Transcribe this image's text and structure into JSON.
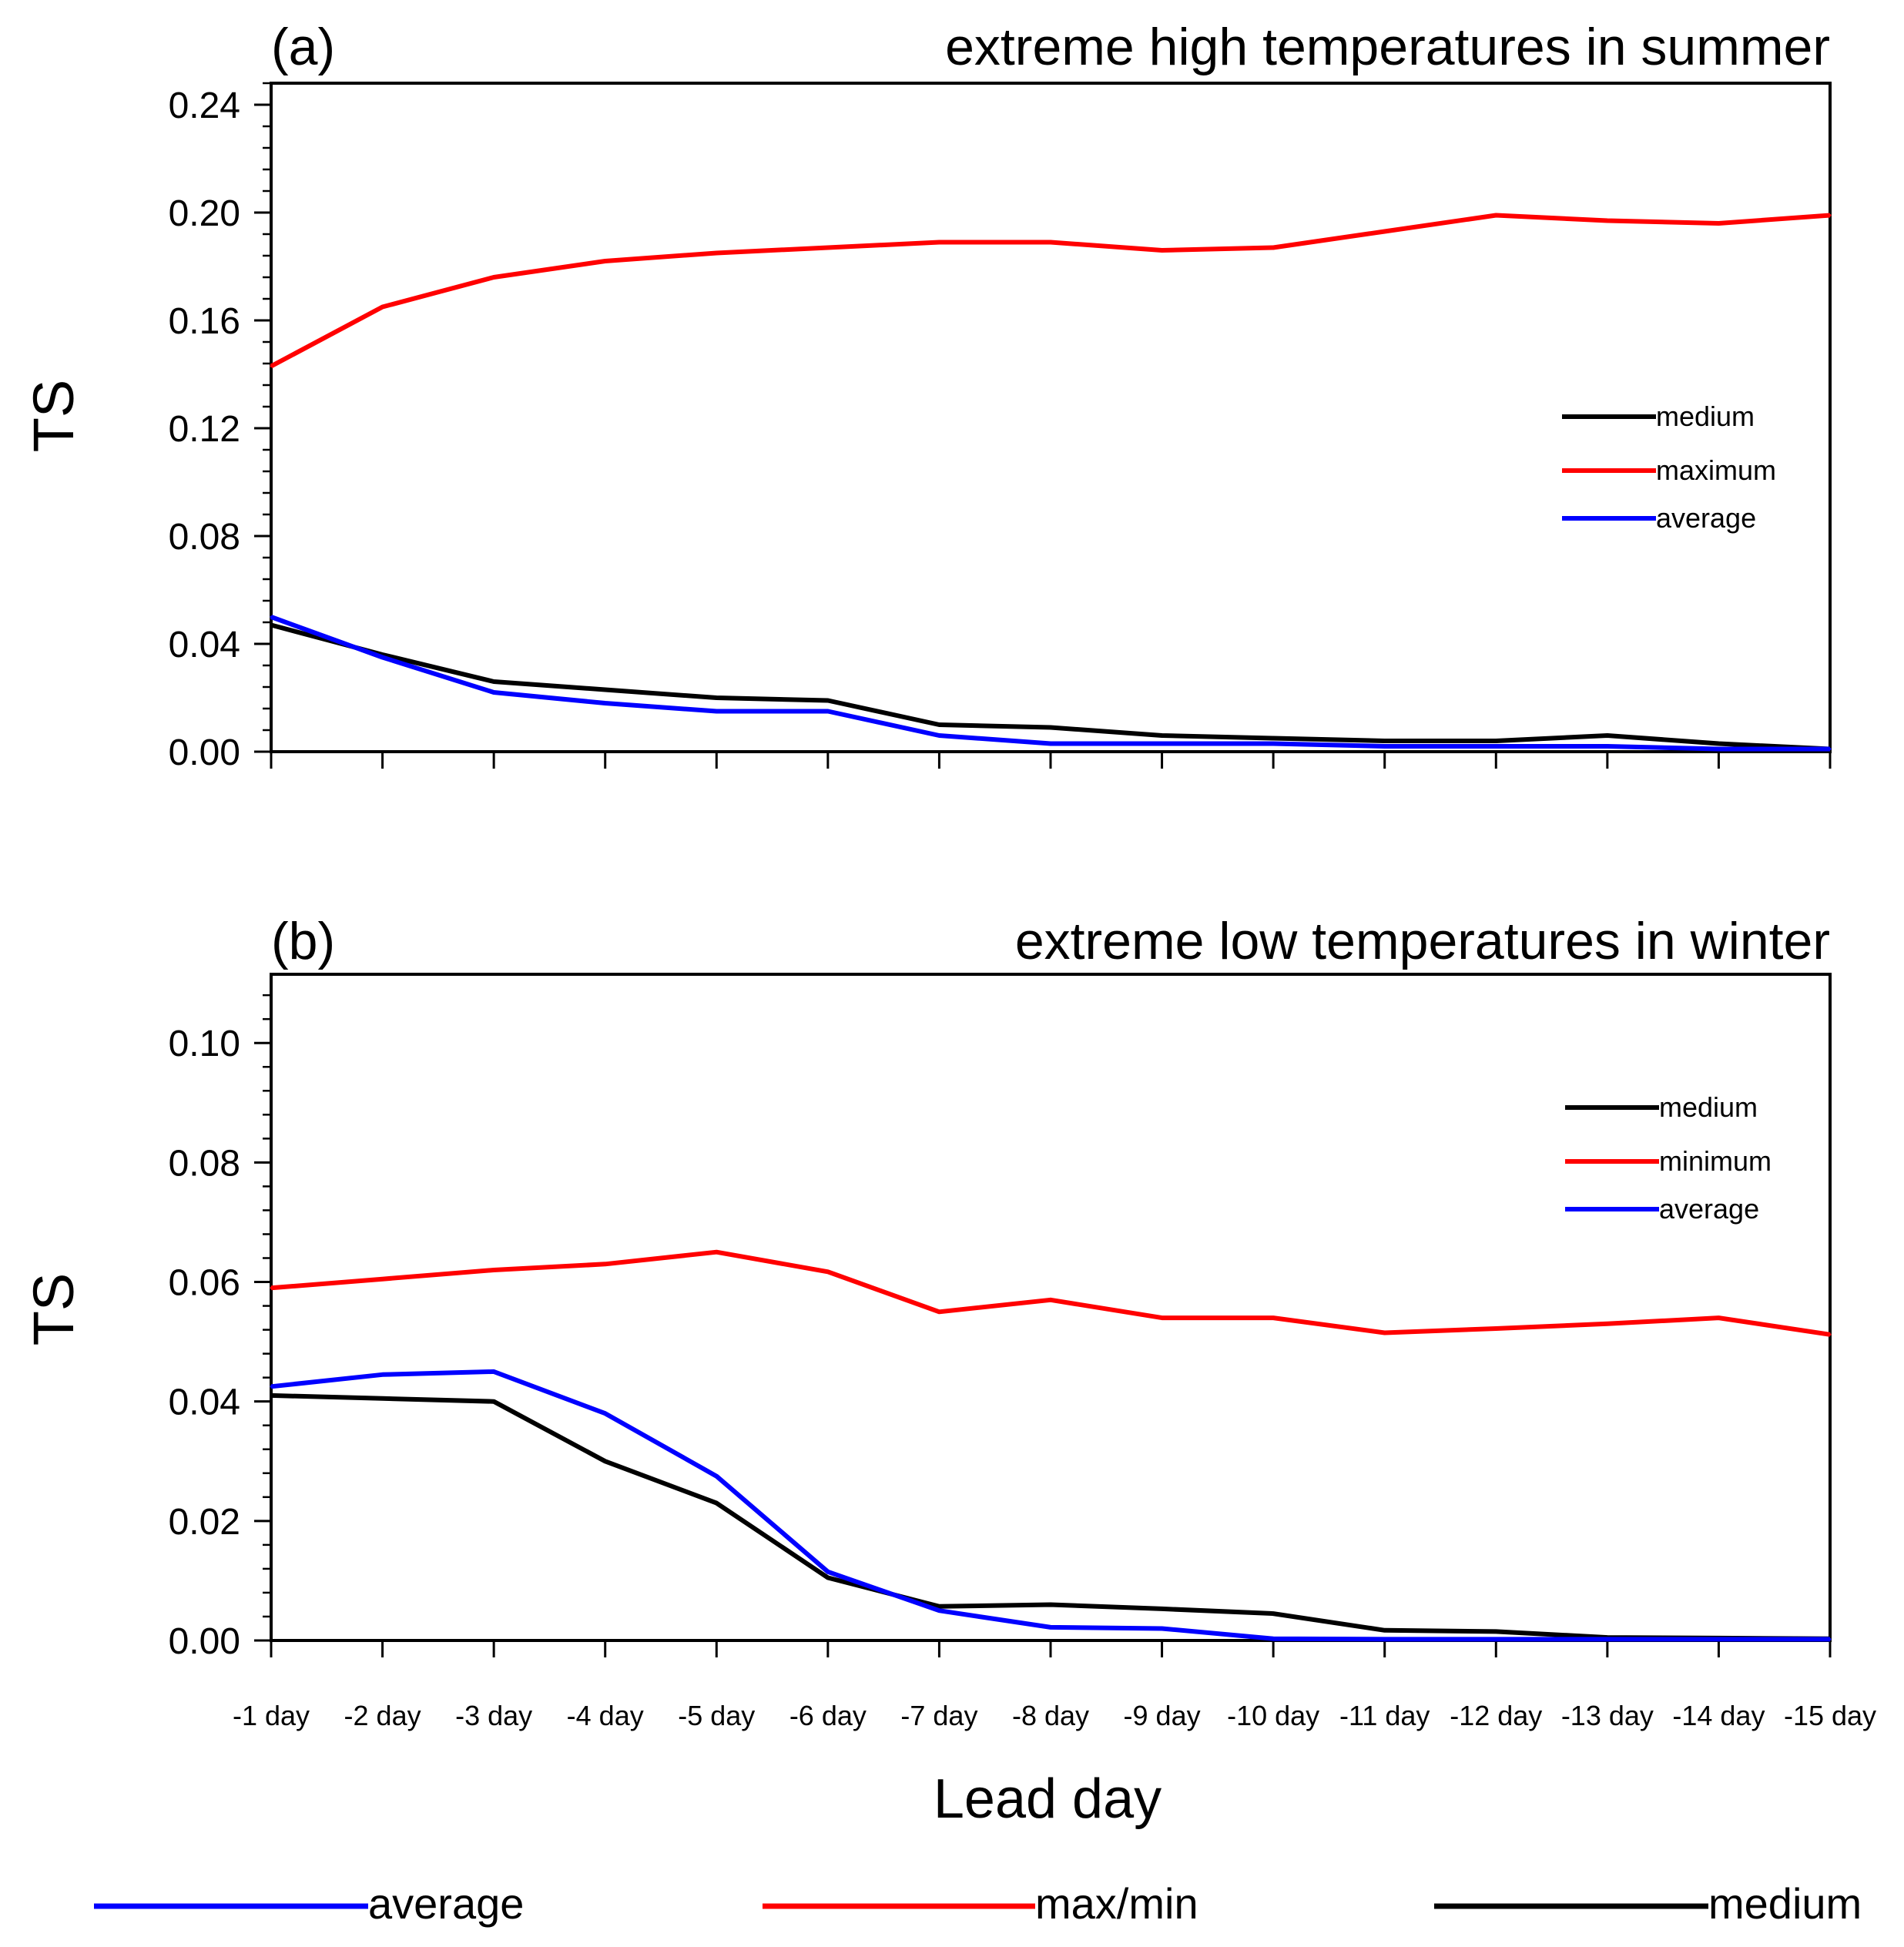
{
  "colors": {
    "medium": "#000000",
    "maxmin": "#ff0000",
    "average": "#0000ff"
  },
  "x_label": "Lead day",
  "bottom_legend": [
    {
      "label": "average",
      "color": "#0000ff"
    },
    {
      "label": "max/min",
      "color": "#ff0000"
    },
    {
      "label": "medium",
      "color": "#000000"
    }
  ],
  "chart_data": [
    {
      "type": "line",
      "panel_label": "(a)",
      "title": "extreme high temperatures in summer",
      "xlabel": "Lead day",
      "ylabel": "TS",
      "categories": [
        "-1 day",
        "-2 day",
        "-3 day",
        "-4 day",
        "-5 day",
        "-6 day",
        "-7 day",
        "-8 day",
        "-9 day",
        "-10 day",
        "-11 day",
        "-12 day",
        "-13 day",
        "-14 day",
        "-15 day"
      ],
      "ylim": [
        0,
        0.248
      ],
      "yticks": [
        "0.00",
        "0.04",
        "0.08",
        "0.12",
        "0.16",
        "0.20",
        "0.24"
      ],
      "legend_position": "right",
      "series": [
        {
          "name": "medium",
          "key": "medium",
          "values": [
            0.047,
            0.036,
            0.026,
            0.023,
            0.02,
            0.019,
            0.01,
            0.009,
            0.006,
            0.005,
            0.004,
            0.004,
            0.006,
            0.003,
            0.001
          ]
        },
        {
          "name": "maximum",
          "key": "maxmin",
          "values": [
            0.143,
            0.165,
            0.176,
            0.182,
            0.185,
            0.187,
            0.189,
            0.189,
            0.186,
            0.187,
            0.193,
            0.199,
            0.197,
            0.196,
            0.199
          ]
        },
        {
          "name": "average",
          "key": "average",
          "values": [
            0.05,
            0.035,
            0.022,
            0.018,
            0.015,
            0.015,
            0.006,
            0.003,
            0.003,
            0.003,
            0.002,
            0.002,
            0.002,
            0.001,
            0.001
          ]
        }
      ]
    },
    {
      "type": "line",
      "panel_label": "(b)",
      "title": "extreme low temperatures in winter",
      "xlabel": "Lead day",
      "ylabel": "TS",
      "categories": [
        "-1 day",
        "-2 day",
        "-3 day",
        "-4 day",
        "-5 day",
        "-6 day",
        "-7 day",
        "-8 day",
        "-9 day",
        "-10 day",
        "-11 day",
        "-12 day",
        "-13 day",
        "-14 day",
        "-15 day"
      ],
      "ylim": [
        0,
        0.1115
      ],
      "yticks": [
        "0.00",
        "0.02",
        "0.04",
        "0.06",
        "0.08",
        "0.10"
      ],
      "legend_position": "right",
      "series": [
        {
          "name": "medium",
          "key": "medium",
          "values": [
            0.041,
            0.0405,
            0.04,
            0.03,
            0.023,
            0.0105,
            0.0057,
            0.006,
            0.0053,
            0.0045,
            0.0017,
            0.0015,
            0.0005,
            0.0004,
            0.0003
          ]
        },
        {
          "name": "minimum",
          "key": "maxmin",
          "values": [
            0.059,
            0.0605,
            0.062,
            0.063,
            0.065,
            0.0617,
            0.055,
            0.057,
            0.054,
            0.054,
            0.0515,
            0.0522,
            0.053,
            0.054,
            0.0512
          ]
        },
        {
          "name": "average",
          "key": "average",
          "values": [
            0.0425,
            0.0445,
            0.045,
            0.038,
            0.0275,
            0.0115,
            0.005,
            0.0022,
            0.002,
            0.0003,
            0.0002,
            0.0002,
            0.0002,
            0.0002,
            0.0002
          ]
        }
      ]
    }
  ]
}
